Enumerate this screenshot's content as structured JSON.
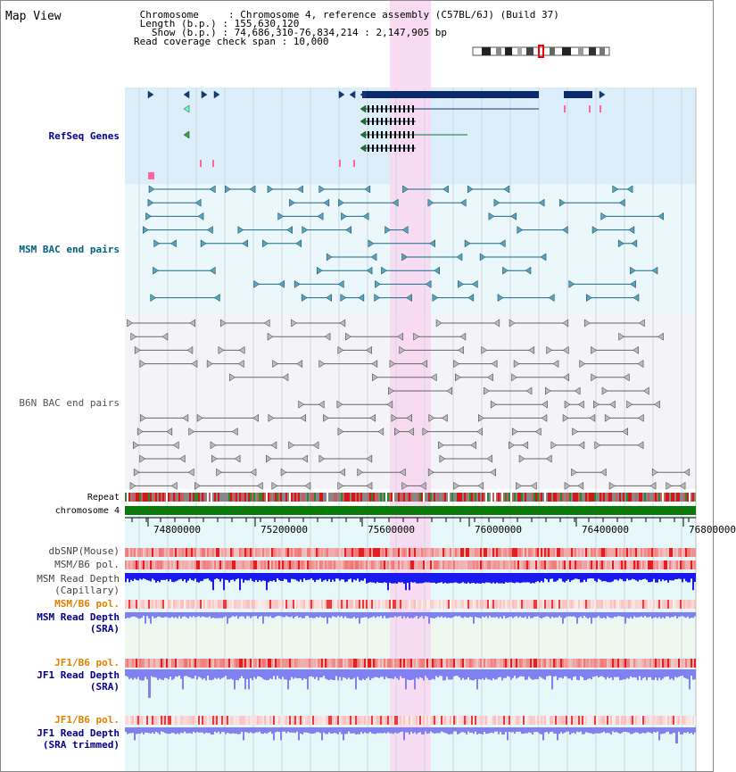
{
  "title": "Map View",
  "info": {
    "lines": [
      " Chromosome     : Chromosome 4, reference assembly (C57BL/6J) (Build 37)",
      " Length (b.p.) : 155,630,120",
      "   Show (b.p.) : 74,686,310-76,834,214 : 2,147,905 bp",
      "Read coverage check span : 10,000"
    ]
  },
  "tracks": {
    "refseq": "RefSeq Genes",
    "msm_bac": "MSM BAC end pairs",
    "b6n_bac": "B6N BAC end pairs",
    "repeat": "Repeat",
    "chromosome": "chromosome 4",
    "dbsnp": "dbSNP(Mouse)",
    "msm_b6_pol_1": "MSM/B6 pol.",
    "msm_depth_cap_1": "MSM Read Depth",
    "msm_depth_cap_2": "(Capillary)",
    "msm_b6_pol_2": "MSM/B6 pol.",
    "msm_depth_sra_1": "MSM Read Depth",
    "msm_depth_sra_2": "(SRA)",
    "jf1_b6_pol_1": "JF1/B6 pol.",
    "jf1_depth_sra_1": "JF1 Read Depth",
    "jf1_depth_sra_2": "(SRA)",
    "jf1_b6_pol_2": "JF1/B6 pol.",
    "jf1_depth_trim_1": "JF1 Read Depth",
    "jf1_depth_trim_2": "(SRA trimmed)"
  },
  "axis": {
    "ticks": [
      "74800000",
      "75200000",
      "75600000",
      "76000000",
      "76400000",
      "76800000"
    ]
  },
  "colors": {
    "refseq_bg": "#dbeef9",
    "msm_bg": "#eaf7fb",
    "b6n_bg": "#f4f4f8",
    "highlight": "#f8d8f2",
    "chromosome_bar": "#0a7a0a",
    "gene": "#0a2a6b",
    "label_navy": "#00008b",
    "label_teal": "#006080",
    "label_gray": "#555555",
    "label_orange": "#e08000",
    "depth_blue": "#1a1af0",
    "depth_light": "#8080f0"
  }
}
